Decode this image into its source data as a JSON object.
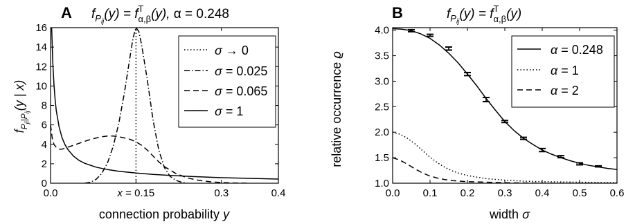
{
  "chart_data": [
    {
      "panel": "A",
      "type": "line",
      "title": "f_{P_ij}(y) = f^T_{α,β}(y), α = 0.248",
      "title_parts": {
        "lhs": "f",
        "lhs_sub": "P",
        "lhs_subsub": "ij",
        "lhs_arg": "(y) = ",
        "rhs": "f",
        "rhs_sup": "T",
        "rhs_sub": "α,β",
        "rhs_arg": "(y), ",
        "alpha": "α = 0.248"
      },
      "xlabel": "connection probability",
      "xlabel_var": "y",
      "ylabel": "f_{P_ji|P_ij}(y | x)",
      "ylabel_parts": {
        "f": "f",
        "sub": "P",
        "subsub_a": "ji",
        "bar": "|",
        "sub2": "P",
        "subsub_b": "ij",
        "arg": "(y | x)"
      },
      "xlim": [
        0.0,
        0.4
      ],
      "ylim": [
        0,
        16
      ],
      "xticks": [
        "0.0",
        "x = 0.15",
        "0.3",
        "0.4"
      ],
      "xtick_values": [
        0.0,
        0.15,
        0.3,
        0.4
      ],
      "yticks": [
        "0",
        "2",
        "4",
        "6",
        "8",
        "10",
        "12",
        "14",
        "16"
      ],
      "ytick_values": [
        0,
        2,
        4,
        6,
        8,
        10,
        12,
        14,
        16
      ],
      "grid": false,
      "legend_position": "top-right",
      "series": [
        {
          "name": "σ → 0",
          "label_parts": [
            "σ",
            " → 0"
          ],
          "style": "dotted",
          "x": [
            0.15,
            0.15
          ],
          "y": [
            0,
            16
          ]
        },
        {
          "name": "σ = 0.025",
          "label_parts": [
            "σ",
            " = 0.025"
          ],
          "style": "dashdot",
          "x": [
            0.06,
            0.07,
            0.08,
            0.09,
            0.1,
            0.11,
            0.12,
            0.13,
            0.14,
            0.145,
            0.15,
            0.155,
            0.16,
            0.17,
            0.18,
            0.19,
            0.2,
            0.21,
            0.22,
            0.23,
            0.24
          ],
          "y": [
            0.0,
            0.1,
            0.4,
            1.0,
            2.1,
            3.8,
            6.2,
            9.4,
            13.2,
            15.0,
            16.0,
            15.6,
            14.2,
            10.6,
            6.5,
            3.4,
            1.6,
            0.7,
            0.3,
            0.1,
            0.0
          ]
        },
        {
          "name": "σ = 0.065",
          "label_parts": [
            "σ",
            " = 0.065"
          ],
          "style": "dashed",
          "x": [
            0.0,
            0.003,
            0.006,
            0.01,
            0.015,
            0.02,
            0.03,
            0.04,
            0.05,
            0.06,
            0.07,
            0.08,
            0.09,
            0.1,
            0.11,
            0.12,
            0.13,
            0.14,
            0.15,
            0.16,
            0.17,
            0.18,
            0.19,
            0.2,
            0.22,
            0.24,
            0.26,
            0.28,
            0.3,
            0.32,
            0.35
          ],
          "y": [
            6.0,
            4.6,
            4.0,
            3.7,
            3.5,
            3.5,
            3.7,
            3.9,
            4.1,
            4.3,
            4.5,
            4.65,
            4.78,
            4.85,
            4.85,
            4.78,
            4.65,
            4.5,
            4.25,
            3.9,
            3.4,
            2.8,
            2.2,
            1.7,
            1.0,
            0.55,
            0.3,
            0.15,
            0.07,
            0.03,
            0.0
          ]
        },
        {
          "name": "σ = 1",
          "label_parts": [
            "σ",
            " = 1"
          ],
          "style": "solid",
          "x": [
            0.002,
            0.004,
            0.006,
            0.008,
            0.01,
            0.015,
            0.02,
            0.025,
            0.03,
            0.04,
            0.05,
            0.06,
            0.08,
            0.1,
            0.12,
            0.15,
            0.18,
            0.2,
            0.25,
            0.3,
            0.35,
            0.4
          ],
          "y": [
            16.0,
            12.3,
            10.2,
            8.6,
            7.5,
            5.8,
            4.7,
            4.0,
            3.5,
            2.8,
            2.35,
            2.05,
            1.65,
            1.4,
            1.22,
            1.05,
            0.9,
            0.83,
            0.68,
            0.57,
            0.5,
            0.43
          ]
        }
      ]
    },
    {
      "panel": "B",
      "type": "line",
      "title": "f_{P_ij}(y) = f^T_{α,β}(y)",
      "title_parts": {
        "lhs": "f",
        "lhs_sub": "P",
        "lhs_subsub": "ij",
        "lhs_arg": "(y) = ",
        "rhs": "f",
        "rhs_sup": "T",
        "rhs_sub": "α,β",
        "rhs_arg": "(y)"
      },
      "xlabel": "width",
      "xlabel_var": "σ",
      "ylabel": "relative occurrence",
      "ylabel_var": "ϱ",
      "xlim": [
        0.0,
        0.6
      ],
      "ylim": [
        1.0,
        4.05
      ],
      "xticks": [
        "0.0",
        "0.1",
        "0.2",
        "0.3",
        "0.4",
        "0.5",
        "0.6"
      ],
      "xtick_values": [
        0.0,
        0.1,
        0.2,
        0.3,
        0.4,
        0.5,
        0.6
      ],
      "yticks": [
        "1.0",
        "1.5",
        "2.0",
        "2.5",
        "3.0",
        "3.5",
        "4.0"
      ],
      "ytick_values": [
        1.0,
        1.5,
        2.0,
        2.5,
        3.0,
        3.5,
        4.0
      ],
      "grid": false,
      "legend_position": "top-right",
      "series": [
        {
          "name": "α = 0.248",
          "label_parts": [
            "α",
            " = 0.248"
          ],
          "style": "solid",
          "x": [
            0.0,
            0.025,
            0.05,
            0.075,
            0.1,
            0.125,
            0.15,
            0.175,
            0.2,
            0.225,
            0.25,
            0.275,
            0.3,
            0.325,
            0.35,
            0.375,
            0.4,
            0.425,
            0.45,
            0.475,
            0.5,
            0.525,
            0.55,
            0.575,
            0.6
          ],
          "y": [
            4.03,
            4.02,
            3.99,
            3.93,
            3.84,
            3.71,
            3.55,
            3.36,
            3.14,
            2.91,
            2.66,
            2.43,
            2.21,
            2.03,
            1.88,
            1.76,
            1.65,
            1.57,
            1.5,
            1.44,
            1.39,
            1.35,
            1.32,
            1.29,
            1.27
          ]
        },
        {
          "name": "α = 1",
          "label_parts": [
            "α",
            " = 1"
          ],
          "style": "dotted",
          "x": [
            0.0,
            0.02,
            0.04,
            0.06,
            0.08,
            0.1,
            0.12,
            0.14,
            0.16,
            0.18,
            0.2,
            0.25,
            0.3,
            0.35,
            0.4,
            0.5,
            0.6
          ],
          "y": [
            2.0,
            1.96,
            1.88,
            1.77,
            1.64,
            1.51,
            1.4,
            1.31,
            1.24,
            1.19,
            1.15,
            1.09,
            1.06,
            1.04,
            1.03,
            1.02,
            1.01
          ]
        },
        {
          "name": "α = 2",
          "label_parts": [
            "α",
            " = 2"
          ],
          "style": "dashed",
          "x": [
            0.0,
            0.02,
            0.04,
            0.06,
            0.08,
            0.1,
            0.12,
            0.14,
            0.16,
            0.2,
            0.25,
            0.3,
            0.4,
            0.5,
            0.6
          ],
          "y": [
            1.5,
            1.45,
            1.37,
            1.28,
            1.2,
            1.14,
            1.1,
            1.07,
            1.05,
            1.03,
            1.02,
            1.01,
            1.0,
            1.0,
            1.0
          ]
        }
      ],
      "errorbar_points": {
        "x": [
          0.05,
          0.1,
          0.15,
          0.2,
          0.25,
          0.3,
          0.35,
          0.4,
          0.45,
          0.5,
          0.55
        ],
        "y": [
          3.99,
          3.9,
          3.64,
          3.14,
          2.64,
          2.21,
          1.88,
          1.65,
          1.52,
          1.38,
          1.33
        ],
        "err": [
          0.02,
          0.02,
          0.03,
          0.03,
          0.04,
          0.02,
          0.02,
          0.03,
          0.02,
          0.02,
          0.01
        ]
      }
    }
  ]
}
